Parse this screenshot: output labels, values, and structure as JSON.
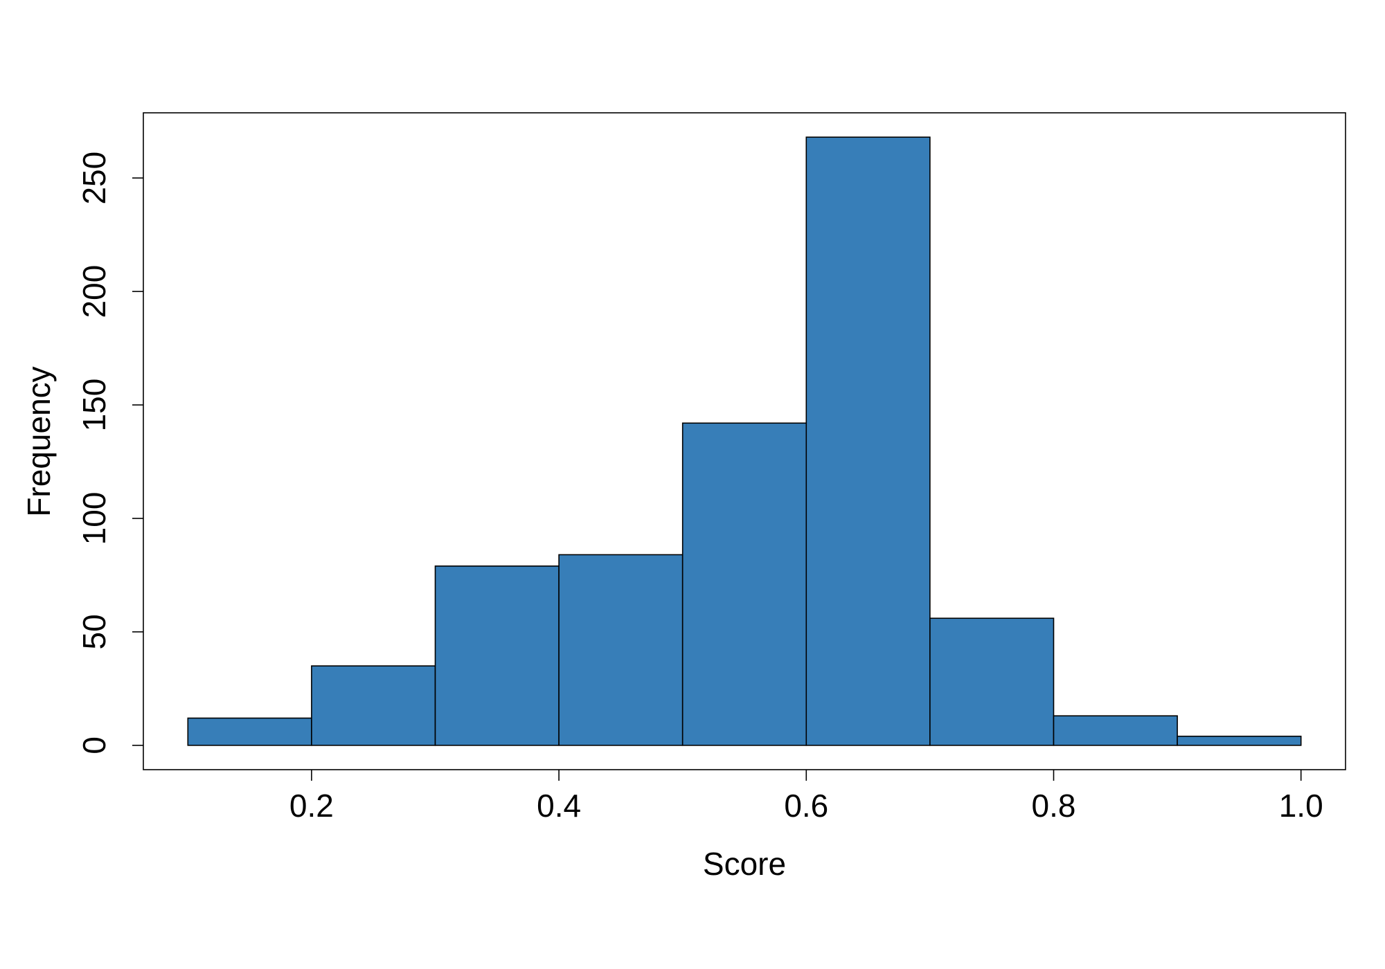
{
  "chart_data": {
    "type": "histogram",
    "xlabel": "Score",
    "ylabel": "Frequency",
    "bins": [
      0.1,
      0.2,
      0.3,
      0.4,
      0.5,
      0.6,
      0.7,
      0.8,
      0.9,
      1.0
    ],
    "values": [
      12,
      35,
      79,
      84,
      142,
      268,
      56,
      13,
      4
    ],
    "color": "#377eb8",
    "xlim": [
      0.064,
      1.036
    ],
    "xticks": [
      0.2,
      0.4,
      0.6,
      0.8,
      {
        "value": 1,
        "label": "1.0"
      }
    ],
    "ylim": [
      -10.72,
      278.72
    ],
    "yticks": [
      0,
      50,
      100,
      150,
      200,
      250
    ],
    "grid": false
  }
}
